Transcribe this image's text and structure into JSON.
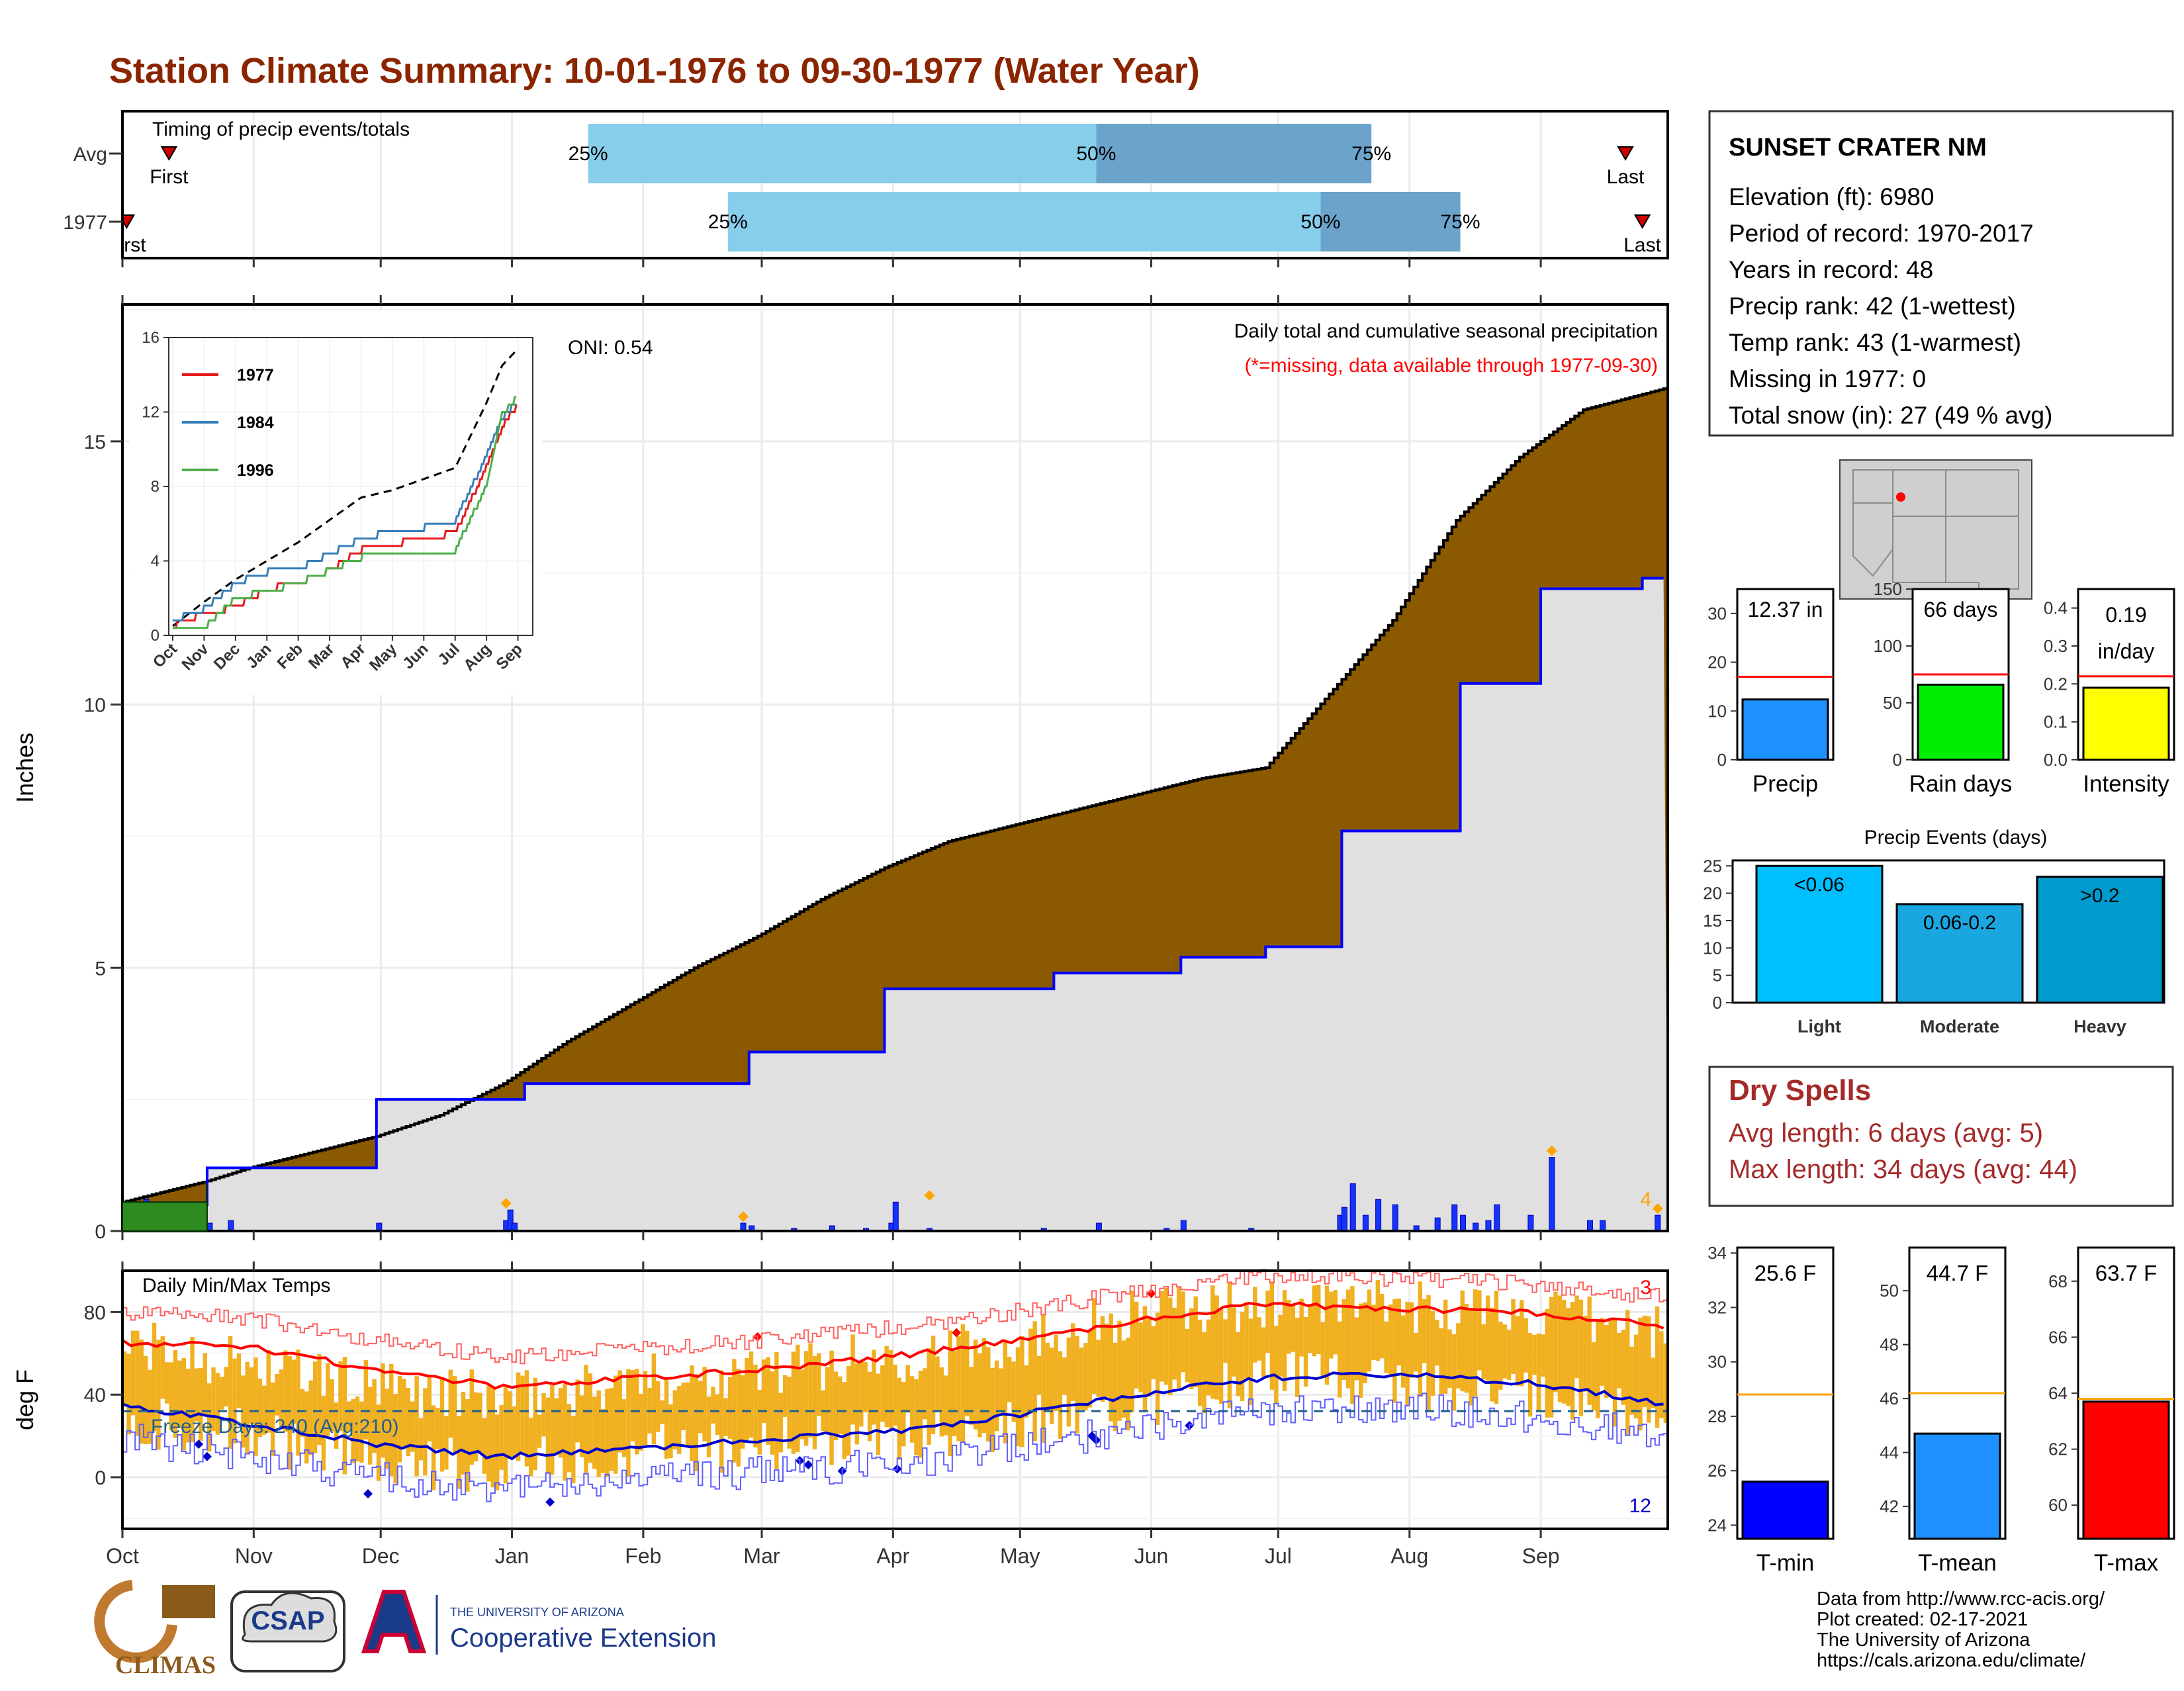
{
  "title": "Station Climate Summary: 10-01-1976 to 09-30-1977 (Water Year)",
  "colors": {
    "title": "#8B2500",
    "cum_fill": "#8B5A00",
    "avg_fill": "#e0e0e0",
    "blue_line": "#0000ff",
    "bar_light": "#87CEEB",
    "bar_dark": "#6BA3CB",
    "temp_bar": "#F0B020",
    "normal_max": "#ff0000",
    "normal_min": "#0000cc",
    "dry": "#A52A2A"
  },
  "months": [
    "Oct",
    "Nov",
    "Dec",
    "Jan",
    "Feb",
    "Mar",
    "Apr",
    "May",
    "Jun",
    "Jul",
    "Aug",
    "Sep"
  ],
  "timing": {
    "title": "Timing of precip events/totals",
    "rows": [
      {
        "label": "Avg",
        "first_label": "First",
        "last_label": "Last",
        "first_day": 11,
        "last_day": 355,
        "q25_day": 110,
        "q50_day": 230,
        "q75_day": 295,
        "q25_label": "25%",
        "q50_label": "50%",
        "q75_label": "75%"
      },
      {
        "label": "1977",
        "first_label": "First",
        "last_label": "Last",
        "first_day": 1,
        "last_day": 359,
        "q25_day": 143,
        "q50_day": 283,
        "q75_day": 316,
        "q25_label": "25%",
        "q50_label": "50%",
        "q75_label": "75%"
      }
    ]
  },
  "precip_panel": {
    "ylabel": "Inches",
    "title1": "Daily total and cumulative seasonal precipitation",
    "title2": "(*=missing, data available through 1977-09-30)",
    "oni": "ONI: 0.54",
    "count_label": "4",
    "yticks": [
      0,
      5,
      10,
      15
    ],
    "ylim": [
      0,
      17.6
    ]
  },
  "inset": {
    "yticks": [
      0,
      4,
      8,
      12,
      16
    ],
    "ylim": [
      0,
      16
    ],
    "months": [
      "Oct",
      "Nov",
      "Dec",
      "Jan",
      "Feb",
      "Mar",
      "Apr",
      "May",
      "Jun",
      "Jul",
      "Aug",
      "Sep"
    ],
    "legend": [
      "1977",
      "1984",
      "1996"
    ],
    "legend_colors": [
      "#e41a1c",
      "#377eb8",
      "#4daf4a"
    ]
  },
  "temp_panel": {
    "ylabel": "deg F",
    "title": "Daily Min/Max Temps",
    "freeze_label": "Freeze Days: 240 (Avg:210)",
    "max_count": "3",
    "min_count": "12",
    "yticks": [
      0,
      40,
      80
    ],
    "ylim": [
      -25,
      100
    ]
  },
  "station": {
    "name": "SUNSET CRATER NM",
    "lines": [
      "Elevation (ft): 6980",
      "Period of record: 1970-2017",
      "Years in record: 48",
      "Precip rank: 42 (1-wettest)",
      "Temp rank: 43 (1-warmest)",
      "Missing in 1977: 0",
      "Total snow (in): 27 (49 % avg)"
    ]
  },
  "mini_bars": [
    {
      "name": "Precip",
      "value_label": "12.37 in",
      "value": 12.37,
      "avg": 17,
      "ylim": [
        0,
        35
      ],
      "yticks": [
        "0",
        "10",
        "20",
        "30"
      ],
      "tickvals": [
        0,
        10,
        20,
        30
      ],
      "color": "#1E90FF"
    },
    {
      "name": "Rain days",
      "value_label": "66 days",
      "value": 66,
      "avg": 75,
      "ylim": [
        0,
        150
      ],
      "yticks": [
        "0",
        "50",
        "100",
        "150"
      ],
      "tickvals": [
        0,
        50,
        100,
        150
      ],
      "color": "#00ee00"
    },
    {
      "name": "Intensity",
      "value_label": "0.19 in/day",
      "value_line1": "0.19",
      "value_line2": "in/day",
      "value": 0.19,
      "avg": 0.22,
      "ylim": [
        0,
        0.45
      ],
      "yticks": [
        "0.0",
        "0.1",
        "0.2",
        "0.3",
        "0.4"
      ],
      "tickvals": [
        0,
        0.1,
        0.2,
        0.3,
        0.4
      ],
      "color": "#ffff00"
    }
  ],
  "events": {
    "title": "Precip Events (days)",
    "yticks": [
      0,
      5,
      10,
      15,
      20,
      25
    ],
    "ylim": [
      0,
      26
    ],
    "bars": [
      {
        "name": "Light",
        "label": "<0.06",
        "value": 25,
        "color": "#00BFFF"
      },
      {
        "name": "Moderate",
        "label": "0.06-0.2",
        "value": 18,
        "color": "#1AA7E0"
      },
      {
        "name": "Heavy",
        "label": ">0.2",
        "value": 23,
        "color": "#009ACD"
      }
    ]
  },
  "dry_spells": {
    "title": "Dry Spells",
    "line1": "Avg length: 6 days (avg: 5)",
    "line2": "Max length: 34 days (avg: 44)"
  },
  "temp_bars": [
    {
      "name": "T-min",
      "value_label": "25.6 F",
      "value": 25.6,
      "avg": 28.8,
      "ylim": [
        23.5,
        34.2
      ],
      "tickvals": [
        24,
        26,
        28,
        30,
        32,
        34
      ],
      "color": "#0000ff"
    },
    {
      "name": "T-mean",
      "value_label": "44.7 F",
      "value": 44.7,
      "avg": 46.2,
      "ylim": [
        40.8,
        51.6
      ],
      "tickvals": [
        42,
        44,
        46,
        48,
        50
      ],
      "color": "#1E90FF"
    },
    {
      "name": "T-max",
      "value_label": "63.7 F",
      "value": 63.7,
      "avg": 63.8,
      "ylim": [
        58.8,
        69.2
      ],
      "tickvals": [
        60,
        62,
        64,
        66,
        68
      ],
      "color": "#ff0000"
    }
  ],
  "credits": [
    "Data from http://www.rcc-acis.org/",
    "Plot created: 02-17-2021",
    "The University of Arizona",
    "https://cals.arizona.edu/climate/"
  ],
  "logos": {
    "climas": "CLIMAS",
    "csap": "CSAP",
    "ua_small": "THE UNIVERSITY OF ARIZONA",
    "ua_big": "Cooperative Extension"
  },
  "chart_data": [
    {
      "type": "area",
      "title": "Daily total and cumulative seasonal precipitation",
      "ylabel": "Inches",
      "x_unit": "day of water year (0 = Oct 1)",
      "ylim": [
        0,
        17.6
      ],
      "series": [
        {
          "name": "",
          "x": [
            0,
            10,
            20,
            30,
            45,
            60,
            75,
            90,
            105,
            120,
            135,
            150,
            165,
            180,
            195,
            210,
            225,
            240,
            255,
            270,
            285,
            300,
            315,
            330,
            345,
            364
          ],
          "y": [
            0.55,
            0.75,
            0.95,
            1.2,
            1.5,
            1.8,
            2.2,
            2.8,
            3.6,
            4.3,
            5.0,
            5.6,
            6.3,
            6.9,
            7.4,
            7.7,
            8.0,
            8.3,
            8.6,
            8.8,
            10.2,
            11.6,
            13.5,
            14.7,
            15.6,
            16.0
          ]
        },
        {
          "name": "",
          "x": [
            0,
            20,
            20,
            60,
            60,
            95,
            95,
            148,
            148,
            180,
            180,
            220,
            220,
            250,
            250,
            270,
            270,
            288,
            288,
            316,
            316,
            335,
            335,
            359,
            359,
            364
          ],
          "y": [
            0.5,
            0.5,
            1.2,
            1.2,
            2.5,
            2.5,
            2.8,
            2.8,
            3.4,
            3.4,
            4.6,
            4.6,
            4.9,
            4.9,
            5.2,
            5.2,
            5.4,
            5.4,
            7.6,
            7.6,
            10.4,
            10.4,
            12.2,
            12.2,
            12.4,
            12.4
          ]
        }
      ]
    },
    {
      "type": "bar",
      "title": "Daily precipitation (in)",
      "x": [
        3,
        5,
        8,
        20,
        25,
        60,
        90,
        91,
        92,
        146,
        148,
        158,
        167,
        175,
        181,
        182,
        190,
        217,
        230,
        246,
        250,
        266,
        287,
        288,
        290,
        293,
        296,
        300,
        305,
        310,
        314,
        316,
        319,
        322,
        324,
        332,
        337,
        346,
        349,
        362
      ],
      "values": [
        0.4,
        0.6,
        0.3,
        0.15,
        0.2,
        0.15,
        0.2,
        0.4,
        0.15,
        0.15,
        0.1,
        0.05,
        0.1,
        0.05,
        0.15,
        0.55,
        0.05,
        0.05,
        0.15,
        0.05,
        0.2,
        0.05,
        0.3,
        0.45,
        0.9,
        0.3,
        0.6,
        0.5,
        0.1,
        0.25,
        0.5,
        0.3,
        0.15,
        0.2,
        0.5,
        0.3,
        1.4,
        0.2,
        0.2,
        0.3
      ]
    },
    {
      "type": "line",
      "title": "Daily Min/Max Temps",
      "ylabel": "deg F",
      "ylim": [
        -25,
        100
      ],
      "series": [
        {
          "name": "",
          "x": [
            0,
            30,
            60,
            90,
            120,
            150,
            180,
            210,
            240,
            270,
            300,
            330,
            364
          ],
          "y": [
            65,
            63,
            52,
            44,
            48,
            52,
            58,
            66,
            76,
            84,
            82,
            80,
            73
          ]
        },
        {
          "name": "",
          "x": [
            0,
            30,
            60,
            90,
            120,
            150,
            180,
            210,
            240,
            270,
            300,
            330,
            364
          ],
          "y": [
            35,
            26,
            16,
            10,
            14,
            18,
            22,
            30,
            40,
            48,
            50,
            46,
            36
          ]
        },
        {
          "name": "",
          "x": [
            0,
            30,
            60,
            90,
            120,
            150,
            180,
            210,
            240,
            270,
            300,
            330,
            364
          ],
          "y": [
            64,
            55,
            43,
            38,
            46,
            52,
            58,
            65,
            80,
            84,
            83,
            80,
            70
          ]
        },
        {
          "name": "",
          "x": [
            0,
            30,
            60,
            90,
            120,
            150,
            180,
            210,
            240,
            270,
            300,
            330,
            364
          ],
          "y": [
            28,
            20,
            8,
            5,
            12,
            16,
            20,
            26,
            36,
            48,
            47,
            40,
            30
          ]
        }
      ]
    },
    {
      "type": "line",
      "title": "",
      "x_unit": "month index (0 = Oct 1)",
      "ylim": [
        0,
        16
      ],
      "series": [
        {
          "name": "",
          "x": [
            0,
            1,
            2,
            3,
            4,
            5,
            6,
            7,
            8,
            9,
            10,
            10.5,
            11
          ],
          "y": [
            0.5,
            1.8,
            3.0,
            4.0,
            5.0,
            6.2,
            7.4,
            7.8,
            8.4,
            9.0,
            12.5,
            14.5,
            15.4
          ]
        },
        {
          "name": "1977",
          "x": [
            0,
            1,
            2,
            3,
            4,
            5,
            6,
            7,
            8,
            9,
            10,
            10.5,
            11
          ],
          "y": [
            0.5,
            1.2,
            1.5,
            2.5,
            2.8,
            3.5,
            4.6,
            4.9,
            5.2,
            5.5,
            9.0,
            11.2,
            12.4
          ]
        },
        {
          "name": "1984",
          "x": [
            0,
            1,
            2,
            3,
            4,
            5,
            6,
            7,
            8,
            9,
            10,
            10.5,
            11
          ],
          "y": [
            0.8,
            1.4,
            2.8,
            3.4,
            3.6,
            4.4,
            5.2,
            5.6,
            5.8,
            6.2,
            9.6,
            11.6,
            12.6
          ]
        },
        {
          "name": "1996",
          "x": [
            0,
            1,
            2,
            3,
            4,
            5,
            6,
            7,
            8,
            9,
            10,
            10.5,
            11
          ],
          "y": [
            0.2,
            0.4,
            2.0,
            2.4,
            2.8,
            3.5,
            4.2,
            4.2,
            4.2,
            4.6,
            8.0,
            11.8,
            12.8
          ]
        }
      ]
    },
    {
      "type": "bar",
      "title": "Precip Events (days)",
      "categories": [
        "Light",
        "Moderate",
        "Heavy"
      ],
      "values": [
        25,
        18,
        23
      ],
      "ylim": [
        0,
        26
      ]
    }
  ]
}
